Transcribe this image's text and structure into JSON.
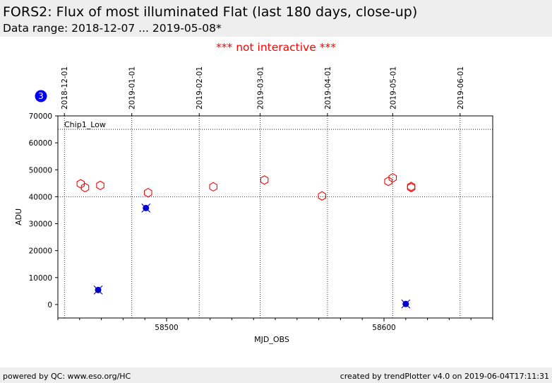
{
  "header": {
    "title": "FORS2: Flux of most illuminated Flat (last 180 days, close-up)",
    "subtitle": "Data range: 2018-12-07 ... 2019-05-08*"
  },
  "notice": "*** not interactive ***",
  "footer": {
    "left": "powered by QC: www.eso.org/HC",
    "right": "created by trendPlotter v4.0 on 2019-06-04T17:11:31"
  },
  "chart_data": {
    "type": "scatter",
    "title": "",
    "panel_label": "Chip1_Low",
    "badge": "3",
    "xlabel": "MJD_OBS",
    "ylabel": "ADU",
    "xlim": [
      58450,
      58650
    ],
    "ylim": [
      -5000,
      70000
    ],
    "x_ticks": [
      58500,
      58600
    ],
    "y_ticks": [
      0,
      10000,
      20000,
      30000,
      40000,
      50000,
      60000,
      70000
    ],
    "date_ticks": [
      {
        "label": "2018-12-01",
        "mjd": 58453
      },
      {
        "label": "2019-01-01",
        "mjd": 58484
      },
      {
        "label": "2019-02-01",
        "mjd": 58515
      },
      {
        "label": "2019-03-01",
        "mjd": 58543
      },
      {
        "label": "2019-04-01",
        "mjd": 58574
      },
      {
        "label": "2019-05-01",
        "mjd": 58604
      },
      {
        "label": "2019-06-01",
        "mjd": 58635
      }
    ],
    "reference_lines": [
      40000,
      65000
    ],
    "grid": true,
    "series": [
      {
        "color": "#ff0000",
        "marker": "hexagon-open",
        "points": [
          {
            "x": 58460.5,
            "y": 44800
          },
          {
            "x": 58462.5,
            "y": 43400
          },
          {
            "x": 58469.5,
            "y": 44200
          },
          {
            "x": 58491.5,
            "y": 41500
          },
          {
            "x": 58521.5,
            "y": 43700
          },
          {
            "x": 58545.0,
            "y": 46200
          },
          {
            "x": 58571.5,
            "y": 40300
          },
          {
            "x": 58602.0,
            "y": 45700
          },
          {
            "x": 58604.0,
            "y": 47000
          },
          {
            "x": 58612.5,
            "y": 43800
          },
          {
            "x": 58612.5,
            "y": 43400
          }
        ]
      },
      {
        "color": "#0000cc",
        "marker": "filled-circle-x",
        "points": [
          {
            "x": 58468.5,
            "y": 5400
          },
          {
            "x": 58490.5,
            "y": 35800
          },
          {
            "x": 58610.0,
            "y": 200
          }
        ]
      }
    ]
  }
}
